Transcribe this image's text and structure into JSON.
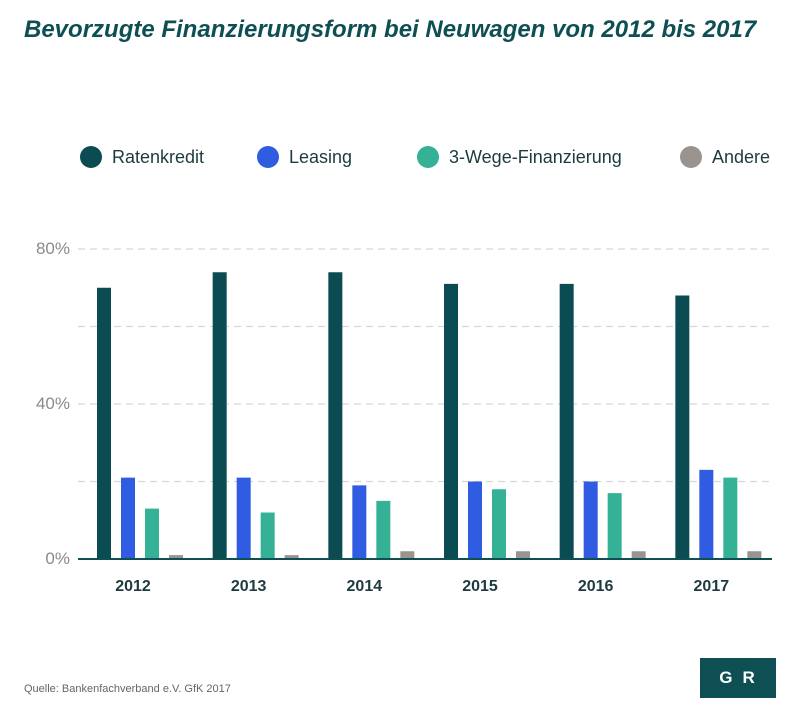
{
  "title": "Bevorzugte Finanzierungsform bei Neuwagen von 2012 bis 2017",
  "source": "Quelle: Bankenfachverband e.V.  GfK 2017",
  "logo": "GR",
  "colors": {
    "Ratenkredit": "#0b4b52",
    "Leasing": "#2f5ce0",
    "3-Wege-Finanzierung": "#35b195",
    "Andere": "#999490"
  },
  "chart_data": {
    "type": "bar",
    "title": "Bevorzugte Finanzierungsform bei Neuwagen von 2012 bis 2017",
    "xlabel": "",
    "ylabel": "",
    "ylim": [
      0,
      80
    ],
    "y_ticks": [
      "0%",
      "40%",
      "80%"
    ],
    "y_tick_values": [
      0,
      40,
      80
    ],
    "grid": true,
    "legend_position": "top",
    "categories": [
      "2012",
      "2013",
      "2014",
      "2015",
      "2016",
      "2017"
    ],
    "series": [
      {
        "name": "Ratenkredit",
        "values": [
          70,
          74,
          74,
          71,
          71,
          68
        ]
      },
      {
        "name": "Leasing",
        "values": [
          21,
          21,
          19,
          20,
          20,
          23
        ]
      },
      {
        "name": "3-Wege-Finanzierung",
        "values": [
          13,
          12,
          15,
          18,
          17,
          21
        ]
      },
      {
        "name": "Andere",
        "values": [
          1,
          1,
          2,
          2,
          2,
          2
        ]
      }
    ]
  }
}
